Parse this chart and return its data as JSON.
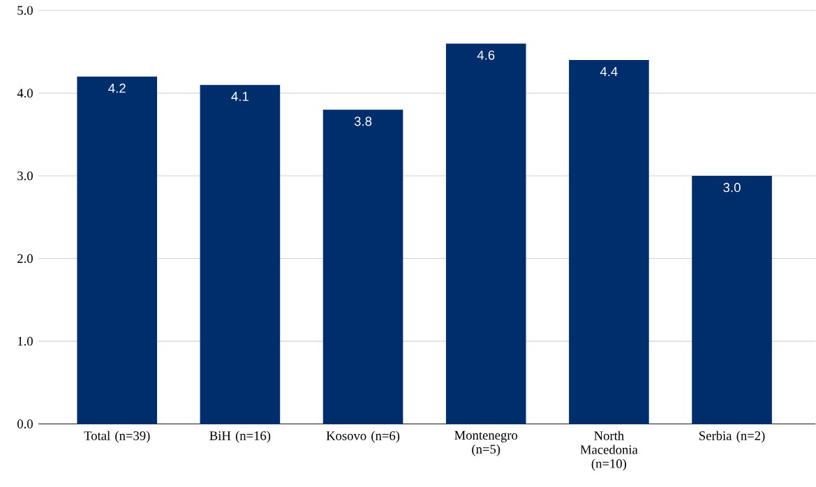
{
  "chart_data": {
    "type": "bar",
    "categories": [
      "Total (n=39)",
      "BiH (n=16)",
      "Kosovo (n=6)",
      "Montenegro (n=5)",
      "North Macedonia (n=10)",
      "Serbia (n=2)"
    ],
    "values": [
      4.2,
      4.1,
      3.8,
      4.6,
      4.4,
      3.0
    ],
    "color": "#002d6b",
    "ylim": [
      0,
      5
    ],
    "yticks": [
      {
        "value": 0,
        "label": "0.0"
      },
      {
        "value": 1,
        "label": "1.0"
      },
      {
        "value": 2,
        "label": "2.0"
      },
      {
        "value": 3,
        "label": "3.0"
      },
      {
        "value": 4,
        "label": "4.0"
      },
      {
        "value": 5,
        "label": "5.0"
      }
    ],
    "grid": "y",
    "value_labels": [
      "4.2",
      "4.1",
      "3.8",
      "4.6",
      "4.4",
      "3.0"
    ]
  }
}
